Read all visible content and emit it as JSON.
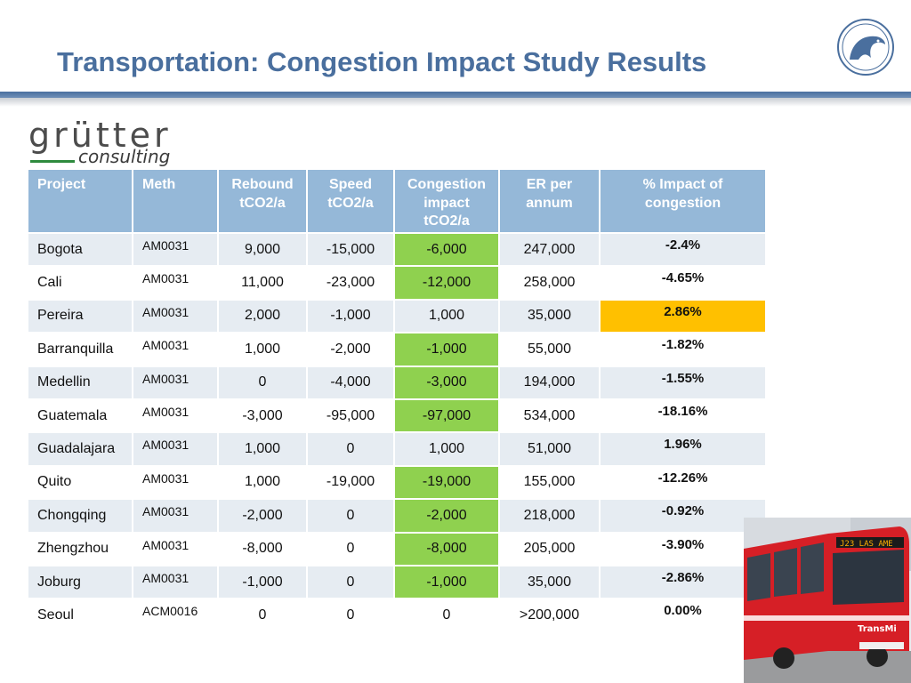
{
  "slide": {
    "title": "Transportation: Congestion Impact Study Results"
  },
  "logo": {
    "word": "grütter",
    "sub": "consulting"
  },
  "colors": {
    "title": "#4a6f9e",
    "header_bg": "#95b8d8",
    "row_band": "#e6ecf2",
    "highlight_green": "#8fd14f",
    "highlight_orange": "#ffc000"
  },
  "table": {
    "headers": {
      "project": "Project",
      "meth": "Meth",
      "rebound": [
        "Rebound",
        "tCO2/a"
      ],
      "speed": [
        "Speed",
        "tCO2/a"
      ],
      "congestion": [
        "Congestion",
        "impact",
        "tCO2/a"
      ],
      "er": [
        "ER per",
        "annum"
      ],
      "pct": [
        "% Impact of",
        "congestion"
      ]
    },
    "rows": [
      {
        "project": "Bogota",
        "meth": "AM0031",
        "rebound": "9,000",
        "speed": "-15,000",
        "congestion": "-6,000",
        "er": "247,000",
        "pct": "-2.4%"
      },
      {
        "project": "Cali",
        "meth": "AM0031",
        "rebound": "11,000",
        "speed": "-23,000",
        "congestion": "-12,000",
        "er": "258,000",
        "pct": "-4.65%"
      },
      {
        "project": "Pereira",
        "meth": "AM0031",
        "rebound": "2,000",
        "speed": "-1,000",
        "congestion": "1,000",
        "er": "35,000",
        "pct": "2.86%"
      },
      {
        "project": "Barranquilla",
        "meth": "AM0031",
        "rebound": "1,000",
        "speed": "-2,000",
        "congestion": "-1,000",
        "er": "55,000",
        "pct": "-1.82%"
      },
      {
        "project": "Medellin",
        "meth": "AM0031",
        "rebound": "0",
        "speed": "-4,000",
        "congestion": "-3,000",
        "er": "194,000",
        "pct": "-1.55%"
      },
      {
        "project": "Guatemala",
        "meth": "AM0031",
        "rebound": "-3,000",
        "speed": "-95,000",
        "congestion": "-97,000",
        "er": "534,000",
        "pct": "-18.16%"
      },
      {
        "project": "Guadalajara",
        "meth": "AM0031",
        "rebound": "1,000",
        "speed": "0",
        "congestion": "1,000",
        "er": "51,000",
        "pct": "1.96%"
      },
      {
        "project": "Quito",
        "meth": "AM0031",
        "rebound": "1,000",
        "speed": "-19,000",
        "congestion": "-19,000",
        "er": "155,000",
        "pct": "-12.26%"
      },
      {
        "project": "Chongqing",
        "meth": "AM0031",
        "rebound": "-2,000",
        "speed": "0",
        "congestion": "-2,000",
        "er": "218,000",
        "pct": "-0.92%"
      },
      {
        "project": "Zhengzhou",
        "meth": "AM0031",
        "rebound": "-8,000",
        "speed": "0",
        "congestion": "-8,000",
        "er": "205,000",
        "pct": "-3.90%"
      },
      {
        "project": "Joburg",
        "meth": "AM0031",
        "rebound": "-1,000",
        "speed": "0",
        "congestion": "-1,000",
        "er": "35,000",
        "pct": "-2.86%"
      },
      {
        "project": "Seoul",
        "meth": "ACM0016",
        "rebound": "0",
        "speed": "0",
        "congestion": "0",
        "er": ">200,000",
        "pct": "0.00%"
      }
    ],
    "highlighted_congestion_rows": [
      0,
      1,
      3,
      4,
      5,
      7,
      8,
      9,
      10
    ],
    "highlighted_pct_rows": [
      2
    ]
  },
  "photo": {
    "sign_text": "J23 LAS AME",
    "brand_text": "TransMi"
  }
}
